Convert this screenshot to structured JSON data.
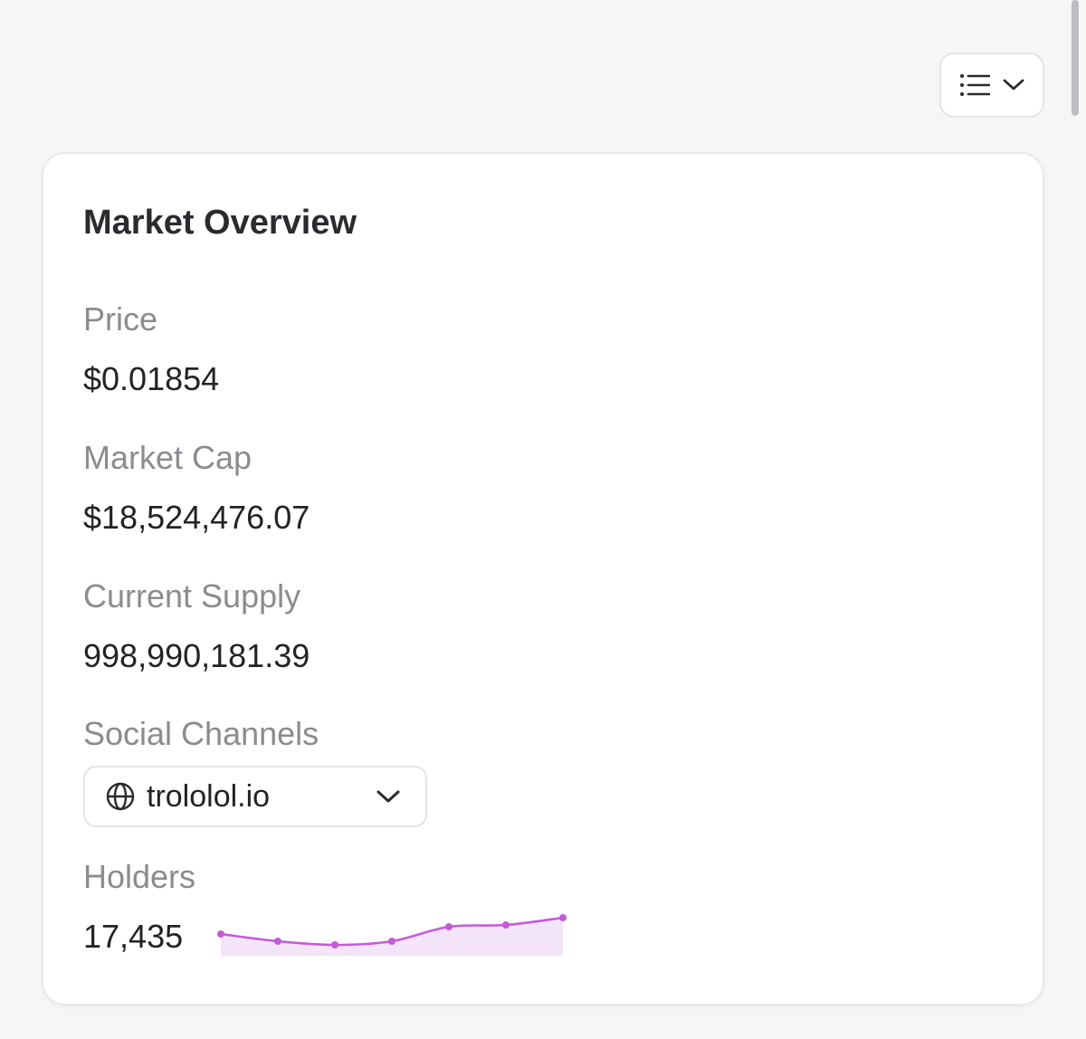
{
  "header": {
    "view_toggle_icon": "list-icon",
    "view_toggle_caret_icon": "chevron-down-icon"
  },
  "market_overview": {
    "title": "Market Overview",
    "price": {
      "label": "Price",
      "value": "$0.01854"
    },
    "market_cap": {
      "label": "Market Cap",
      "value": "$18,524,476.07"
    },
    "current_supply": {
      "label": "Current Supply",
      "value": "998,990,181.39"
    },
    "social_channels": {
      "label": "Social Channels",
      "selected": "trololol.io",
      "icon": "globe-icon"
    },
    "holders": {
      "label": "Holders",
      "value": "17,435",
      "trend_color": "#c35bd8",
      "trend_fill": "#f3e4f8",
      "trend": [
        0.55,
        0.35,
        0.25,
        0.35,
        0.75,
        0.8,
        1.0
      ]
    }
  }
}
